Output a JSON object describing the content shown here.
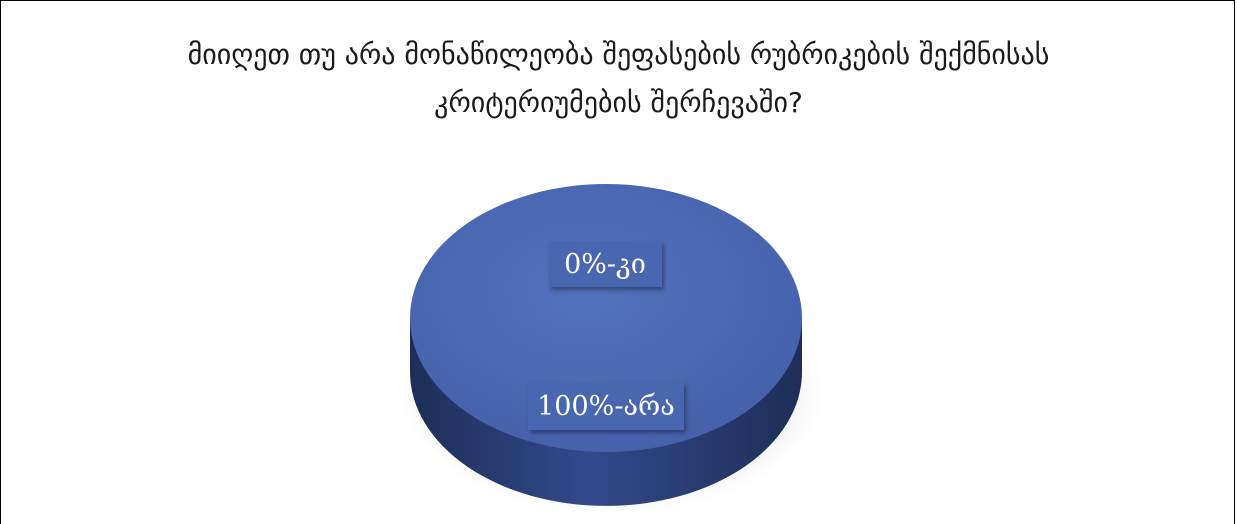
{
  "chart_data": {
    "type": "pie",
    "style": "3d",
    "title_lines": [
      "მიიღეთ თუ არა მონაწილეობა შეფასების რუბრიკების შექმნისას",
      "კრიტერიუმების შერჩევაში?"
    ],
    "slices": [
      {
        "label": "კი",
        "value": 0,
        "data_label": "0%-კი"
      },
      {
        "label": "არა",
        "value": 100,
        "data_label": "100%-არა"
      }
    ],
    "colors": {
      "top": "#4a66b0",
      "side_dark": "#233565",
      "side_mid": "#32498a",
      "label_box": "#4a66b0"
    }
  }
}
